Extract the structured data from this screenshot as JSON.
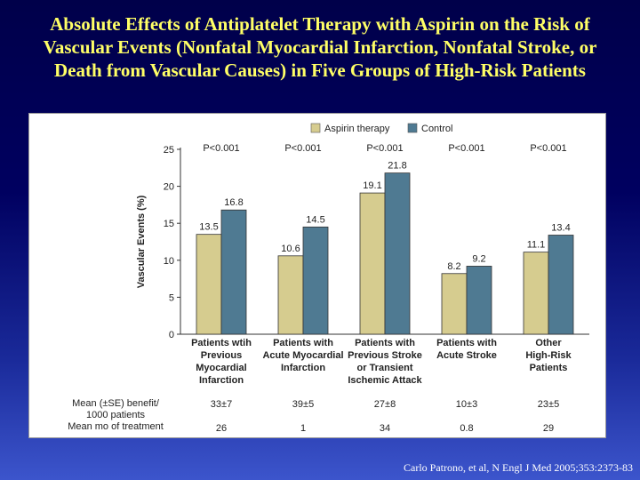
{
  "slide": {
    "title_lines": [
      "Absolute Effects of Antiplatelet Therapy with Aspirin on the Risk of",
      "Vascular Events (Nonfatal Myocardial Infarction, Nonfatal Stroke, or",
      "Death from Vascular Causes) in Five Groups of High-Risk Patients"
    ],
    "citation": "Carlo Patrono, et al, N Engl J Med 2005;353:2373-83"
  },
  "colors": {
    "aspirin": "#d6cc8f",
    "control": "#4f7a92",
    "title": "#ffff66"
  },
  "chart_data": {
    "type": "bar",
    "ylabel": "Vascular Events (%)",
    "ylim": [
      0,
      25
    ],
    "yticks": [
      "0",
      "5",
      "10",
      "15",
      "20",
      "25"
    ],
    "legend_position": "top",
    "categories": [
      [
        "Patients wtih",
        "Previous",
        "Myocardial",
        "Infarction"
      ],
      [
        "Patients with",
        "Acute Myocardial",
        "Infarction"
      ],
      [
        "Patients with",
        "Previous Stroke",
        "or Transient",
        "Ischemic Attack"
      ],
      [
        "Patients with",
        "Acute Stroke"
      ],
      [
        "Other",
        "High-Risk",
        "Patients"
      ]
    ],
    "p_values": [
      "P<0.001",
      "P<0.001",
      "P<0.001",
      "P<0.001",
      "P<0.001"
    ],
    "series": [
      {
        "name": "Aspirin therapy",
        "values": [
          13.5,
          10.6,
          19.1,
          8.2,
          11.1
        ],
        "labels": [
          "13.5",
          "10.6",
          "19.1",
          "8.2",
          "11.1"
        ]
      },
      {
        "name": "Control",
        "values": [
          16.8,
          14.5,
          21.8,
          9.2,
          13.4
        ],
        "labels": [
          "16.8",
          "14.5",
          "21.8",
          "9.2",
          "13.4"
        ]
      }
    ],
    "table": [
      {
        "label_lines": [
          "Mean (±SE) benefit/",
          "1000 patients"
        ],
        "values": [
          "33±7",
          "39±5",
          "27±8",
          "10±3",
          "23±5"
        ]
      },
      {
        "label_lines": [
          "Mean mo of treatment"
        ],
        "values": [
          "26",
          "1",
          "34",
          "0.8",
          "29"
        ]
      }
    ]
  }
}
